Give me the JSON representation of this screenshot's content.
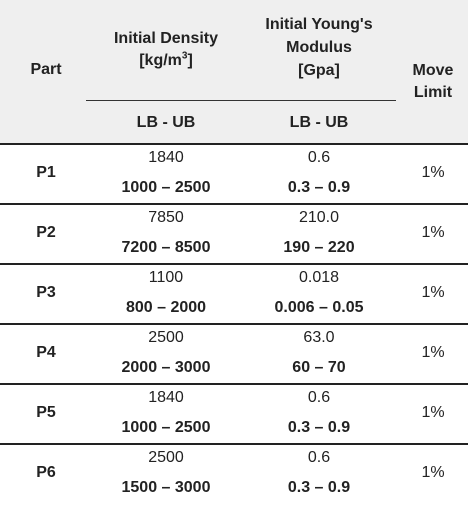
{
  "header": {
    "part": "Part",
    "density_line1": "Initial Density",
    "density_line2_pre": "[kg/m",
    "density_sup": "3",
    "density_line2_post": "]",
    "modulus_line1": "Initial Young's",
    "modulus_line2": "Modulus",
    "modulus_line3": "[Gpa]",
    "move_line1": "Move",
    "move_line2": "Limit",
    "density_sub": "LB - UB",
    "modulus_sub": "LB - UB"
  },
  "rows": [
    {
      "part": "P1",
      "density": "1840",
      "density_range": "1000 – 2500",
      "modulus": "0.6",
      "modulus_range": "0.3 – 0.9",
      "move_limit": "1%"
    },
    {
      "part": "P2",
      "density": "7850",
      "density_range": "7200 – 8500",
      "modulus": "210.0",
      "modulus_range": "190 – 220",
      "move_limit": "1%"
    },
    {
      "part": "P3",
      "density": "1100",
      "density_range": "800 – 2000",
      "modulus": "0.018",
      "modulus_range": "0.006 – 0.05",
      "move_limit": "1%"
    },
    {
      "part": "P4",
      "density": "2500",
      "density_range": "2000 – 3000",
      "modulus": "63.0",
      "modulus_range": "60 – 70",
      "move_limit": "1%"
    },
    {
      "part": "P5",
      "density": "1840",
      "density_range": "1000 – 2500",
      "modulus": "0.6",
      "modulus_range": "0.3 – 0.9",
      "move_limit": "1%"
    },
    {
      "part": "P6",
      "density": "2500",
      "density_range": "1500 – 3000",
      "modulus": "0.6",
      "modulus_range": "0.3 – 0.9",
      "move_limit": "1%"
    }
  ]
}
